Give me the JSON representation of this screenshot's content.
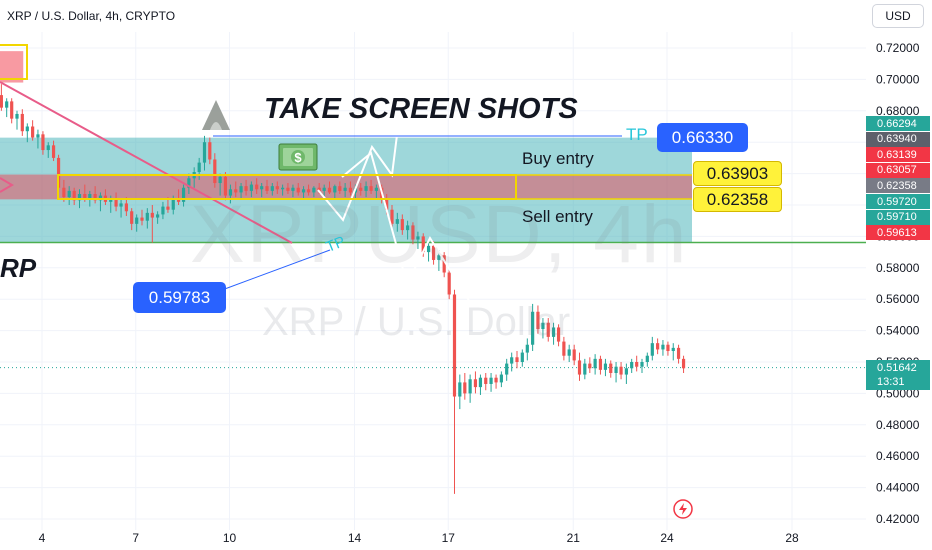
{
  "header": {
    "symbol_line": "XRP / U.S. Dollar, 4h, CRYPTO",
    "currency": "USD"
  },
  "annotations": {
    "title": "TAKE SCREEN SHOTS",
    "left_text": "RP",
    "watermark_main": "XRPUSD, 4h",
    "watermark_sub": "XRP / U.S. Dollar",
    "tp_top_text": "TP",
    "tp_top_value": "0.66330",
    "tp_left_text": "TP",
    "tp_left_value": "0.59783",
    "buy_entry_label": "Buy entry",
    "buy_entry_value": "0.63903",
    "sell_entry_label": "Sell entry",
    "sell_entry_value": "0.62358",
    "money_icon": "money-icon"
  },
  "colors": {
    "up": "#26a69a",
    "down": "#ef5350",
    "zone_red": "#f23645",
    "zone_teal": "#3eafb5",
    "yellow": "#fff23a",
    "blue": "#2962ff",
    "green_line": "#4caf50",
    "pink_line": "#e85c89"
  },
  "price_labels": [
    {
      "value": "0.66294",
      "color": "#26a69a"
    },
    {
      "value": "0.63940",
      "color": "#5d606b"
    },
    {
      "value": "0.63139",
      "color": "#f23645"
    },
    {
      "value": "0.63057",
      "color": "#f23645"
    },
    {
      "value": "0.62358",
      "color": "#787b86"
    },
    {
      "value": "0.59720",
      "color": "#26a69a"
    },
    {
      "value": "0.59710",
      "color": "#26a69a"
    },
    {
      "value": "0.59613",
      "color": "#f23645"
    }
  ],
  "current_price": {
    "value": "0.51642",
    "countdown": "13:31",
    "color": "#26a69a"
  },
  "chart_data": {
    "type": "candlestick",
    "y_axis": {
      "min": 0.42,
      "max": 0.72,
      "ticks": [
        "0.42000",
        "0.44000",
        "0.46000",
        "0.48000",
        "0.50000",
        "0.52000",
        "0.54000",
        "0.56000",
        "0.58000",
        "0.60000",
        "0.62000",
        "0.64000",
        "0.66000",
        "0.68000",
        "0.70000",
        "0.72000"
      ]
    },
    "x_axis": {
      "ticks": [
        {
          "label": "4",
          "day": 4
        },
        {
          "label": "7",
          "day": 7
        },
        {
          "label": "10",
          "day": 10
        },
        {
          "label": "14",
          "day": 14
        },
        {
          "label": "17",
          "day": 17
        },
        {
          "label": "21",
          "day": 21
        },
        {
          "label": "24",
          "day": 24
        },
        {
          "label": "28",
          "day": 28
        }
      ],
      "range_days": [
        2.65,
        30.7
      ]
    },
    "levels": {
      "tp_top": 0.6633,
      "buy_entry": 0.63903,
      "sell_entry": 0.62358,
      "green_line": 0.59613,
      "tp_left": 0.59783
    },
    "zones": [
      {
        "name": "teal-zone",
        "from_day": 2.65,
        "to_day": 24.8,
        "low": 0.5962,
        "high": 0.6629,
        "color": "#3eafb5",
        "opacity": 0.5
      },
      {
        "name": "red-zone",
        "from_day": 2.65,
        "to_day": 24.8,
        "low": 0.6236,
        "high": 0.6394,
        "color": "#f23645",
        "opacity": 0.45
      },
      {
        "name": "top-left-red-box",
        "from_day": 2.65,
        "to_day": 3.4,
        "low": 0.698,
        "high": 0.718,
        "color": "#f23645",
        "opacity": 0.5
      }
    ],
    "candles": [
      {
        "d": 2.7,
        "o": 0.69,
        "h": 0.697,
        "l": 0.68,
        "c": 0.682
      },
      {
        "d": 2.87,
        "o": 0.682,
        "h": 0.688,
        "l": 0.676,
        "c": 0.686
      },
      {
        "d": 3.03,
        "o": 0.686,
        "h": 0.688,
        "l": 0.672,
        "c": 0.675
      },
      {
        "d": 3.2,
        "o": 0.675,
        "h": 0.68,
        "l": 0.668,
        "c": 0.678
      },
      {
        "d": 3.37,
        "o": 0.678,
        "h": 0.681,
        "l": 0.664,
        "c": 0.667
      },
      {
        "d": 3.53,
        "o": 0.667,
        "h": 0.672,
        "l": 0.66,
        "c": 0.67
      },
      {
        "d": 3.7,
        "o": 0.67,
        "h": 0.674,
        "l": 0.661,
        "c": 0.663
      },
      {
        "d": 3.87,
        "o": 0.663,
        "h": 0.668,
        "l": 0.656,
        "c": 0.665
      },
      {
        "d": 4.03,
        "o": 0.665,
        "h": 0.667,
        "l": 0.652,
        "c": 0.655
      },
      {
        "d": 4.2,
        "o": 0.655,
        "h": 0.66,
        "l": 0.65,
        "c": 0.658
      },
      {
        "d": 4.37,
        "o": 0.658,
        "h": 0.661,
        "l": 0.648,
        "c": 0.65
      },
      {
        "d": 4.53,
        "o": 0.65,
        "h": 0.652,
        "l": 0.628,
        "c": 0.631
      },
      {
        "d": 4.7,
        "o": 0.631,
        "h": 0.636,
        "l": 0.622,
        "c": 0.625
      },
      {
        "d": 4.87,
        "o": 0.625,
        "h": 0.632,
        "l": 0.62,
        "c": 0.629
      },
      {
        "d": 5.03,
        "o": 0.629,
        "h": 0.631,
        "l": 0.62,
        "c": 0.623
      },
      {
        "d": 5.2,
        "o": 0.623,
        "h": 0.63,
        "l": 0.618,
        "c": 0.627
      },
      {
        "d": 5.37,
        "o": 0.627,
        "h": 0.633,
        "l": 0.622,
        "c": 0.624
      },
      {
        "d": 5.53,
        "o": 0.624,
        "h": 0.629,
        "l": 0.619,
        "c": 0.627
      },
      {
        "d": 5.7,
        "o": 0.627,
        "h": 0.632,
        "l": 0.621,
        "c": 0.623
      },
      {
        "d": 5.87,
        "o": 0.623,
        "h": 0.628,
        "l": 0.616,
        "c": 0.626
      },
      {
        "d": 6.03,
        "o": 0.626,
        "h": 0.63,
        "l": 0.62,
        "c": 0.622
      },
      {
        "d": 6.2,
        "o": 0.622,
        "h": 0.626,
        "l": 0.615,
        "c": 0.624
      },
      {
        "d": 6.37,
        "o": 0.624,
        "h": 0.628,
        "l": 0.616,
        "c": 0.619
      },
      {
        "d": 6.53,
        "o": 0.619,
        "h": 0.624,
        "l": 0.612,
        "c": 0.621
      },
      {
        "d": 6.7,
        "o": 0.621,
        "h": 0.625,
        "l": 0.613,
        "c": 0.616
      },
      {
        "d": 6.87,
        "o": 0.616,
        "h": 0.618,
        "l": 0.604,
        "c": 0.608
      },
      {
        "d": 7.03,
        "o": 0.608,
        "h": 0.614,
        "l": 0.603,
        "c": 0.612
      },
      {
        "d": 7.2,
        "o": 0.612,
        "h": 0.617,
        "l": 0.607,
        "c": 0.61
      },
      {
        "d": 7.37,
        "o": 0.61,
        "h": 0.618,
        "l": 0.605,
        "c": 0.615
      },
      {
        "d": 7.53,
        "o": 0.615,
        "h": 0.62,
        "l": 0.596,
        "c": 0.612
      },
      {
        "d": 7.7,
        "o": 0.612,
        "h": 0.616,
        "l": 0.608,
        "c": 0.614
      },
      {
        "d": 7.87,
        "o": 0.614,
        "h": 0.622,
        "l": 0.611,
        "c": 0.619
      },
      {
        "d": 8.03,
        "o": 0.619,
        "h": 0.625,
        "l": 0.615,
        "c": 0.617
      },
      {
        "d": 8.2,
        "o": 0.617,
        "h": 0.626,
        "l": 0.614,
        "c": 0.624
      },
      {
        "d": 8.37,
        "o": 0.624,
        "h": 0.63,
        "l": 0.62,
        "c": 0.622
      },
      {
        "d": 8.53,
        "o": 0.622,
        "h": 0.633,
        "l": 0.619,
        "c": 0.631
      },
      {
        "d": 8.7,
        "o": 0.631,
        "h": 0.64,
        "l": 0.627,
        "c": 0.637
      },
      {
        "d": 8.87,
        "o": 0.637,
        "h": 0.644,
        "l": 0.631,
        "c": 0.641
      },
      {
        "d": 9.03,
        "o": 0.641,
        "h": 0.65,
        "l": 0.636,
        "c": 0.647
      },
      {
        "d": 9.2,
        "o": 0.647,
        "h": 0.664,
        "l": 0.642,
        "c": 0.66
      },
      {
        "d": 9.37,
        "o": 0.66,
        "h": 0.663,
        "l": 0.646,
        "c": 0.649
      },
      {
        "d": 9.53,
        "o": 0.649,
        "h": 0.653,
        "l": 0.631,
        "c": 0.634
      },
      {
        "d": 9.7,
        "o": 0.634,
        "h": 0.64,
        "l": 0.626,
        "c": 0.638
      },
      {
        "d": 9.87,
        "o": 0.638,
        "h": 0.641,
        "l": 0.623,
        "c": 0.626
      },
      {
        "d": 10.03,
        "o": 0.626,
        "h": 0.633,
        "l": 0.621,
        "c": 0.63
      },
      {
        "d": 10.2,
        "o": 0.63,
        "h": 0.635,
        "l": 0.625,
        "c": 0.628
      },
      {
        "d": 10.37,
        "o": 0.628,
        "h": 0.634,
        "l": 0.624,
        "c": 0.632
      },
      {
        "d": 10.53,
        "o": 0.632,
        "h": 0.636,
        "l": 0.626,
        "c": 0.629
      },
      {
        "d": 10.7,
        "o": 0.629,
        "h": 0.635,
        "l": 0.625,
        "c": 0.633
      },
      {
        "d": 10.87,
        "o": 0.633,
        "h": 0.637,
        "l": 0.627,
        "c": 0.63
      },
      {
        "d": 11.03,
        "o": 0.63,
        "h": 0.634,
        "l": 0.625,
        "c": 0.632
      },
      {
        "d": 11.2,
        "o": 0.632,
        "h": 0.636,
        "l": 0.627,
        "c": 0.629
      },
      {
        "d": 11.37,
        "o": 0.629,
        "h": 0.634,
        "l": 0.626,
        "c": 0.632
      },
      {
        "d": 11.53,
        "o": 0.632,
        "h": 0.635,
        "l": 0.627,
        "c": 0.63
      },
      {
        "d": 11.7,
        "o": 0.63,
        "h": 0.633,
        "l": 0.626,
        "c": 0.631
      },
      {
        "d": 11.87,
        "o": 0.631,
        "h": 0.634,
        "l": 0.627,
        "c": 0.629
      },
      {
        "d": 12.03,
        "o": 0.629,
        "h": 0.633,
        "l": 0.625,
        "c": 0.631
      },
      {
        "d": 12.2,
        "o": 0.631,
        "h": 0.634,
        "l": 0.626,
        "c": 0.628
      },
      {
        "d": 12.37,
        "o": 0.628,
        "h": 0.632,
        "l": 0.624,
        "c": 0.63
      },
      {
        "d": 12.53,
        "o": 0.63,
        "h": 0.633,
        "l": 0.626,
        "c": 0.628
      },
      {
        "d": 12.7,
        "o": 0.628,
        "h": 0.632,
        "l": 0.625,
        "c": 0.631
      },
      {
        "d": 12.87,
        "o": 0.631,
        "h": 0.634,
        "l": 0.627,
        "c": 0.629
      },
      {
        "d": 13.03,
        "o": 0.629,
        "h": 0.633,
        "l": 0.625,
        "c": 0.631
      },
      {
        "d": 13.2,
        "o": 0.631,
        "h": 0.635,
        "l": 0.627,
        "c": 0.628
      },
      {
        "d": 13.37,
        "o": 0.628,
        "h": 0.633,
        "l": 0.624,
        "c": 0.632
      },
      {
        "d": 13.53,
        "o": 0.632,
        "h": 0.635,
        "l": 0.627,
        "c": 0.629
      },
      {
        "d": 13.7,
        "o": 0.629,
        "h": 0.634,
        "l": 0.625,
        "c": 0.631
      },
      {
        "d": 13.87,
        "o": 0.631,
        "h": 0.635,
        "l": 0.626,
        "c": 0.628
      },
      {
        "d": 14.03,
        "o": 0.628,
        "h": 0.633,
        "l": 0.624,
        "c": 0.631
      },
      {
        "d": 14.2,
        "o": 0.631,
        "h": 0.634,
        "l": 0.626,
        "c": 0.629
      },
      {
        "d": 14.37,
        "o": 0.629,
        "h": 0.635,
        "l": 0.625,
        "c": 0.632
      },
      {
        "d": 14.53,
        "o": 0.632,
        "h": 0.636,
        "l": 0.627,
        "c": 0.629
      },
      {
        "d": 14.7,
        "o": 0.629,
        "h": 0.633,
        "l": 0.624,
        "c": 0.631
      },
      {
        "d": 14.87,
        "o": 0.631,
        "h": 0.633,
        "l": 0.621,
        "c": 0.624
      },
      {
        "d": 15.03,
        "o": 0.624,
        "h": 0.627,
        "l": 0.614,
        "c": 0.617
      },
      {
        "d": 15.2,
        "o": 0.617,
        "h": 0.62,
        "l": 0.604,
        "c": 0.608
      },
      {
        "d": 15.37,
        "o": 0.608,
        "h": 0.615,
        "l": 0.603,
        "c": 0.611
      },
      {
        "d": 15.53,
        "o": 0.611,
        "h": 0.614,
        "l": 0.601,
        "c": 0.604
      },
      {
        "d": 15.7,
        "o": 0.604,
        "h": 0.61,
        "l": 0.598,
        "c": 0.607
      },
      {
        "d": 15.87,
        "o": 0.607,
        "h": 0.609,
        "l": 0.595,
        "c": 0.598
      },
      {
        "d": 16.03,
        "o": 0.598,
        "h": 0.603,
        "l": 0.592,
        "c": 0.6
      },
      {
        "d": 16.2,
        "o": 0.6,
        "h": 0.602,
        "l": 0.587,
        "c": 0.59
      },
      {
        "d": 16.37,
        "o": 0.59,
        "h": 0.597,
        "l": 0.584,
        "c": 0.594
      },
      {
        "d": 16.53,
        "o": 0.594,
        "h": 0.597,
        "l": 0.582,
        "c": 0.585
      },
      {
        "d": 16.7,
        "o": 0.585,
        "h": 0.591,
        "l": 0.578,
        "c": 0.588
      },
      {
        "d": 16.87,
        "o": 0.588,
        "h": 0.59,
        "l": 0.574,
        "c": 0.577
      },
      {
        "d": 17.03,
        "o": 0.577,
        "h": 0.58,
        "l": 0.56,
        "c": 0.563
      },
      {
        "d": 17.2,
        "o": 0.563,
        "h": 0.566,
        "l": 0.436,
        "c": 0.498
      },
      {
        "d": 17.37,
        "o": 0.498,
        "h": 0.512,
        "l": 0.49,
        "c": 0.507
      },
      {
        "d": 17.53,
        "o": 0.507,
        "h": 0.513,
        "l": 0.496,
        "c": 0.5
      },
      {
        "d": 17.7,
        "o": 0.5,
        "h": 0.512,
        "l": 0.494,
        "c": 0.509
      },
      {
        "d": 17.87,
        "o": 0.509,
        "h": 0.514,
        "l": 0.5,
        "c": 0.504
      },
      {
        "d": 18.03,
        "o": 0.504,
        "h": 0.512,
        "l": 0.499,
        "c": 0.51
      },
      {
        "d": 18.2,
        "o": 0.51,
        "h": 0.513,
        "l": 0.502,
        "c": 0.506
      },
      {
        "d": 18.37,
        "o": 0.506,
        "h": 0.513,
        "l": 0.501,
        "c": 0.51
      },
      {
        "d": 18.53,
        "o": 0.51,
        "h": 0.512,
        "l": 0.503,
        "c": 0.507
      },
      {
        "d": 18.7,
        "o": 0.507,
        "h": 0.514,
        "l": 0.504,
        "c": 0.512
      },
      {
        "d": 18.87,
        "o": 0.512,
        "h": 0.522,
        "l": 0.508,
        "c": 0.519
      },
      {
        "d": 19.03,
        "o": 0.519,
        "h": 0.526,
        "l": 0.514,
        "c": 0.523
      },
      {
        "d": 19.2,
        "o": 0.523,
        "h": 0.527,
        "l": 0.516,
        "c": 0.52
      },
      {
        "d": 19.37,
        "o": 0.52,
        "h": 0.528,
        "l": 0.517,
        "c": 0.526
      },
      {
        "d": 19.53,
        "o": 0.526,
        "h": 0.535,
        "l": 0.521,
        "c": 0.531
      },
      {
        "d": 19.7,
        "o": 0.531,
        "h": 0.557,
        "l": 0.527,
        "c": 0.552
      },
      {
        "d": 19.87,
        "o": 0.552,
        "h": 0.556,
        "l": 0.538,
        "c": 0.541
      },
      {
        "d": 20.03,
        "o": 0.541,
        "h": 0.548,
        "l": 0.535,
        "c": 0.545
      },
      {
        "d": 20.2,
        "o": 0.545,
        "h": 0.548,
        "l": 0.533,
        "c": 0.536
      },
      {
        "d": 20.37,
        "o": 0.536,
        "h": 0.545,
        "l": 0.531,
        "c": 0.542
      },
      {
        "d": 20.53,
        "o": 0.542,
        "h": 0.544,
        "l": 0.53,
        "c": 0.533
      },
      {
        "d": 20.7,
        "o": 0.533,
        "h": 0.536,
        "l": 0.521,
        "c": 0.524
      },
      {
        "d": 20.87,
        "o": 0.524,
        "h": 0.531,
        "l": 0.52,
        "c": 0.528
      },
      {
        "d": 21.03,
        "o": 0.528,
        "h": 0.531,
        "l": 0.518,
        "c": 0.521
      },
      {
        "d": 21.2,
        "o": 0.521,
        "h": 0.526,
        "l": 0.508,
        "c": 0.512
      },
      {
        "d": 21.37,
        "o": 0.512,
        "h": 0.522,
        "l": 0.509,
        "c": 0.519
      },
      {
        "d": 21.53,
        "o": 0.519,
        "h": 0.523,
        "l": 0.513,
        "c": 0.516
      },
      {
        "d": 21.7,
        "o": 0.516,
        "h": 0.525,
        "l": 0.512,
        "c": 0.522
      },
      {
        "d": 21.87,
        "o": 0.522,
        "h": 0.524,
        "l": 0.512,
        "c": 0.515
      },
      {
        "d": 22.03,
        "o": 0.515,
        "h": 0.522,
        "l": 0.511,
        "c": 0.519
      },
      {
        "d": 22.2,
        "o": 0.519,
        "h": 0.521,
        "l": 0.51,
        "c": 0.513
      },
      {
        "d": 22.37,
        "o": 0.513,
        "h": 0.52,
        "l": 0.507,
        "c": 0.517
      },
      {
        "d": 22.53,
        "o": 0.517,
        "h": 0.52,
        "l": 0.509,
        "c": 0.512
      },
      {
        "d": 22.7,
        "o": 0.512,
        "h": 0.519,
        "l": 0.506,
        "c": 0.516
      },
      {
        "d": 22.87,
        "o": 0.516,
        "h": 0.522,
        "l": 0.513,
        "c": 0.52
      },
      {
        "d": 23.03,
        "o": 0.52,
        "h": 0.524,
        "l": 0.514,
        "c": 0.517
      },
      {
        "d": 23.2,
        "o": 0.517,
        "h": 0.522,
        "l": 0.513,
        "c": 0.52
      },
      {
        "d": 23.37,
        "o": 0.52,
        "h": 0.526,
        "l": 0.517,
        "c": 0.524
      },
      {
        "d": 23.53,
        "o": 0.524,
        "h": 0.536,
        "l": 0.521,
        "c": 0.532
      },
      {
        "d": 23.7,
        "o": 0.532,
        "h": 0.535,
        "l": 0.525,
        "c": 0.528
      },
      {
        "d": 23.87,
        "o": 0.528,
        "h": 0.534,
        "l": 0.524,
        "c": 0.531
      },
      {
        "d": 24.03,
        "o": 0.531,
        "h": 0.533,
        "l": 0.524,
        "c": 0.527
      },
      {
        "d": 24.2,
        "o": 0.527,
        "h": 0.532,
        "l": 0.521,
        "c": 0.529
      },
      {
        "d": 24.37,
        "o": 0.529,
        "h": 0.531,
        "l": 0.519,
        "c": 0.522
      },
      {
        "d": 24.53,
        "o": 0.522,
        "h": 0.524,
        "l": 0.513,
        "c": 0.516
      }
    ]
  }
}
